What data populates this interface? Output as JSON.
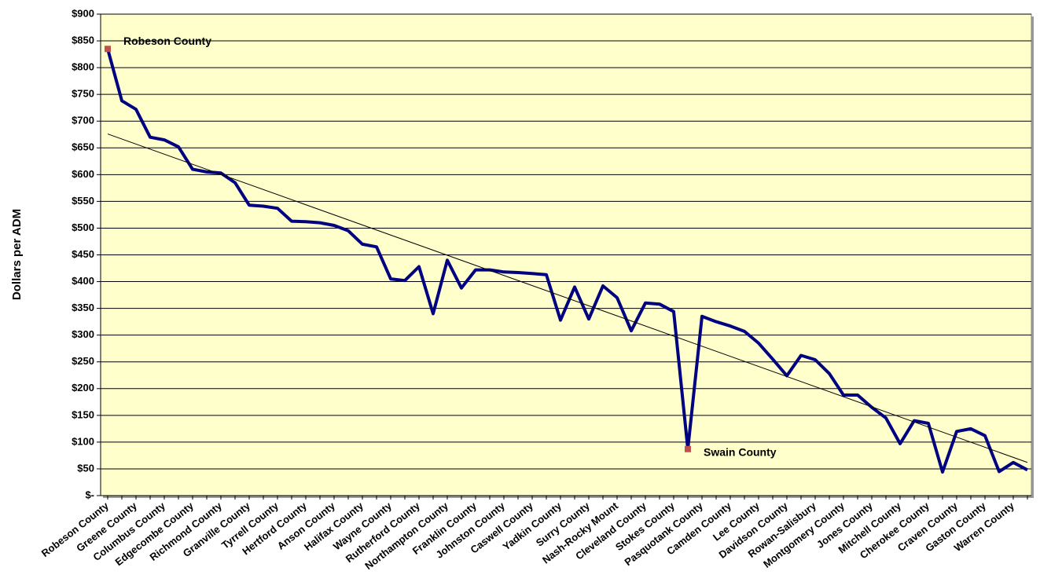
{
  "chart_data": {
    "type": "line",
    "y_label": "Dollars per ADM",
    "categories": [
      "Robeson County",
      null,
      "Greene County",
      null,
      "Columbus County",
      null,
      "Edgecombe County",
      null,
      "Richmond County",
      null,
      "Granville County",
      null,
      "Tyrrell County",
      null,
      "Hertford County",
      null,
      "Anson County",
      null,
      "Halifax County",
      null,
      "Wayne County",
      null,
      "Rutherford County",
      null,
      "Northampton County",
      null,
      "Franklin County",
      null,
      "Johnston County",
      null,
      "Caswell County",
      null,
      "Yadkin County",
      null,
      "Surry County",
      null,
      "Nash-Rocky Mount",
      null,
      "Cleveland County",
      null,
      "Stokes County",
      null,
      "Pasquotank County",
      null,
      "Camden County",
      null,
      "Lee County",
      null,
      "Davidson County",
      null,
      "Rowan-Salisbury",
      null,
      "Montgomery County",
      null,
      "Jones County",
      null,
      "Mitchell County",
      null,
      "Cherokee County",
      null,
      "Craven County",
      null,
      "Gaston County",
      null,
      "Warren County",
      null
    ],
    "values": [
      835,
      738,
      722,
      670,
      665,
      652,
      610,
      605,
      603,
      585,
      543,
      541,
      537,
      513,
      512,
      510,
      505,
      495,
      470,
      465,
      405,
      402,
      428,
      340,
      440,
      388,
      422,
      422,
      418,
      417,
      415,
      413,
      328,
      390,
      330,
      392,
      370,
      308,
      360,
      358,
      344,
      87,
      335,
      325,
      317,
      307,
      285,
      255,
      224,
      262,
      254,
      228,
      188,
      188,
      165,
      145,
      97,
      140,
      135,
      44,
      120,
      125,
      112,
      45,
      62,
      48
    ],
    "color": "#000080",
    "trendline": [
      676,
      62
    ],
    "trendline_color": "#000000",
    "annotations": [
      {
        "text": "Robeson County",
        "point": 0
      },
      {
        "text": "Swain County",
        "point": 41
      }
    ],
    "marker_color": "#c0504d",
    "ylim": [
      0,
      900
    ],
    "yticks": [
      {
        "value": 0,
        "label": "$-"
      },
      {
        "value": 50,
        "label": "$50"
      },
      {
        "value": 100,
        "label": "$100"
      },
      {
        "value": 150,
        "label": "$150"
      },
      {
        "value": 200,
        "label": "$200"
      },
      {
        "value": 250,
        "label": "$250"
      },
      {
        "value": 300,
        "label": "$300"
      },
      {
        "value": 350,
        "label": "$350"
      },
      {
        "value": 400,
        "label": "$400"
      },
      {
        "value": 450,
        "label": "$450"
      },
      {
        "value": 500,
        "label": "$500"
      },
      {
        "value": 550,
        "label": "$550"
      },
      {
        "value": 600,
        "label": "$600"
      },
      {
        "value": 650,
        "label": "$650"
      },
      {
        "value": 700,
        "label": "$700"
      },
      {
        "value": 750,
        "label": "$750"
      },
      {
        "value": 800,
        "label": "$800"
      },
      {
        "value": 850,
        "label": "$850"
      },
      {
        "value": 900,
        "label": "$900"
      }
    ],
    "grid": true,
    "plot_background": "#ffffcc"
  }
}
